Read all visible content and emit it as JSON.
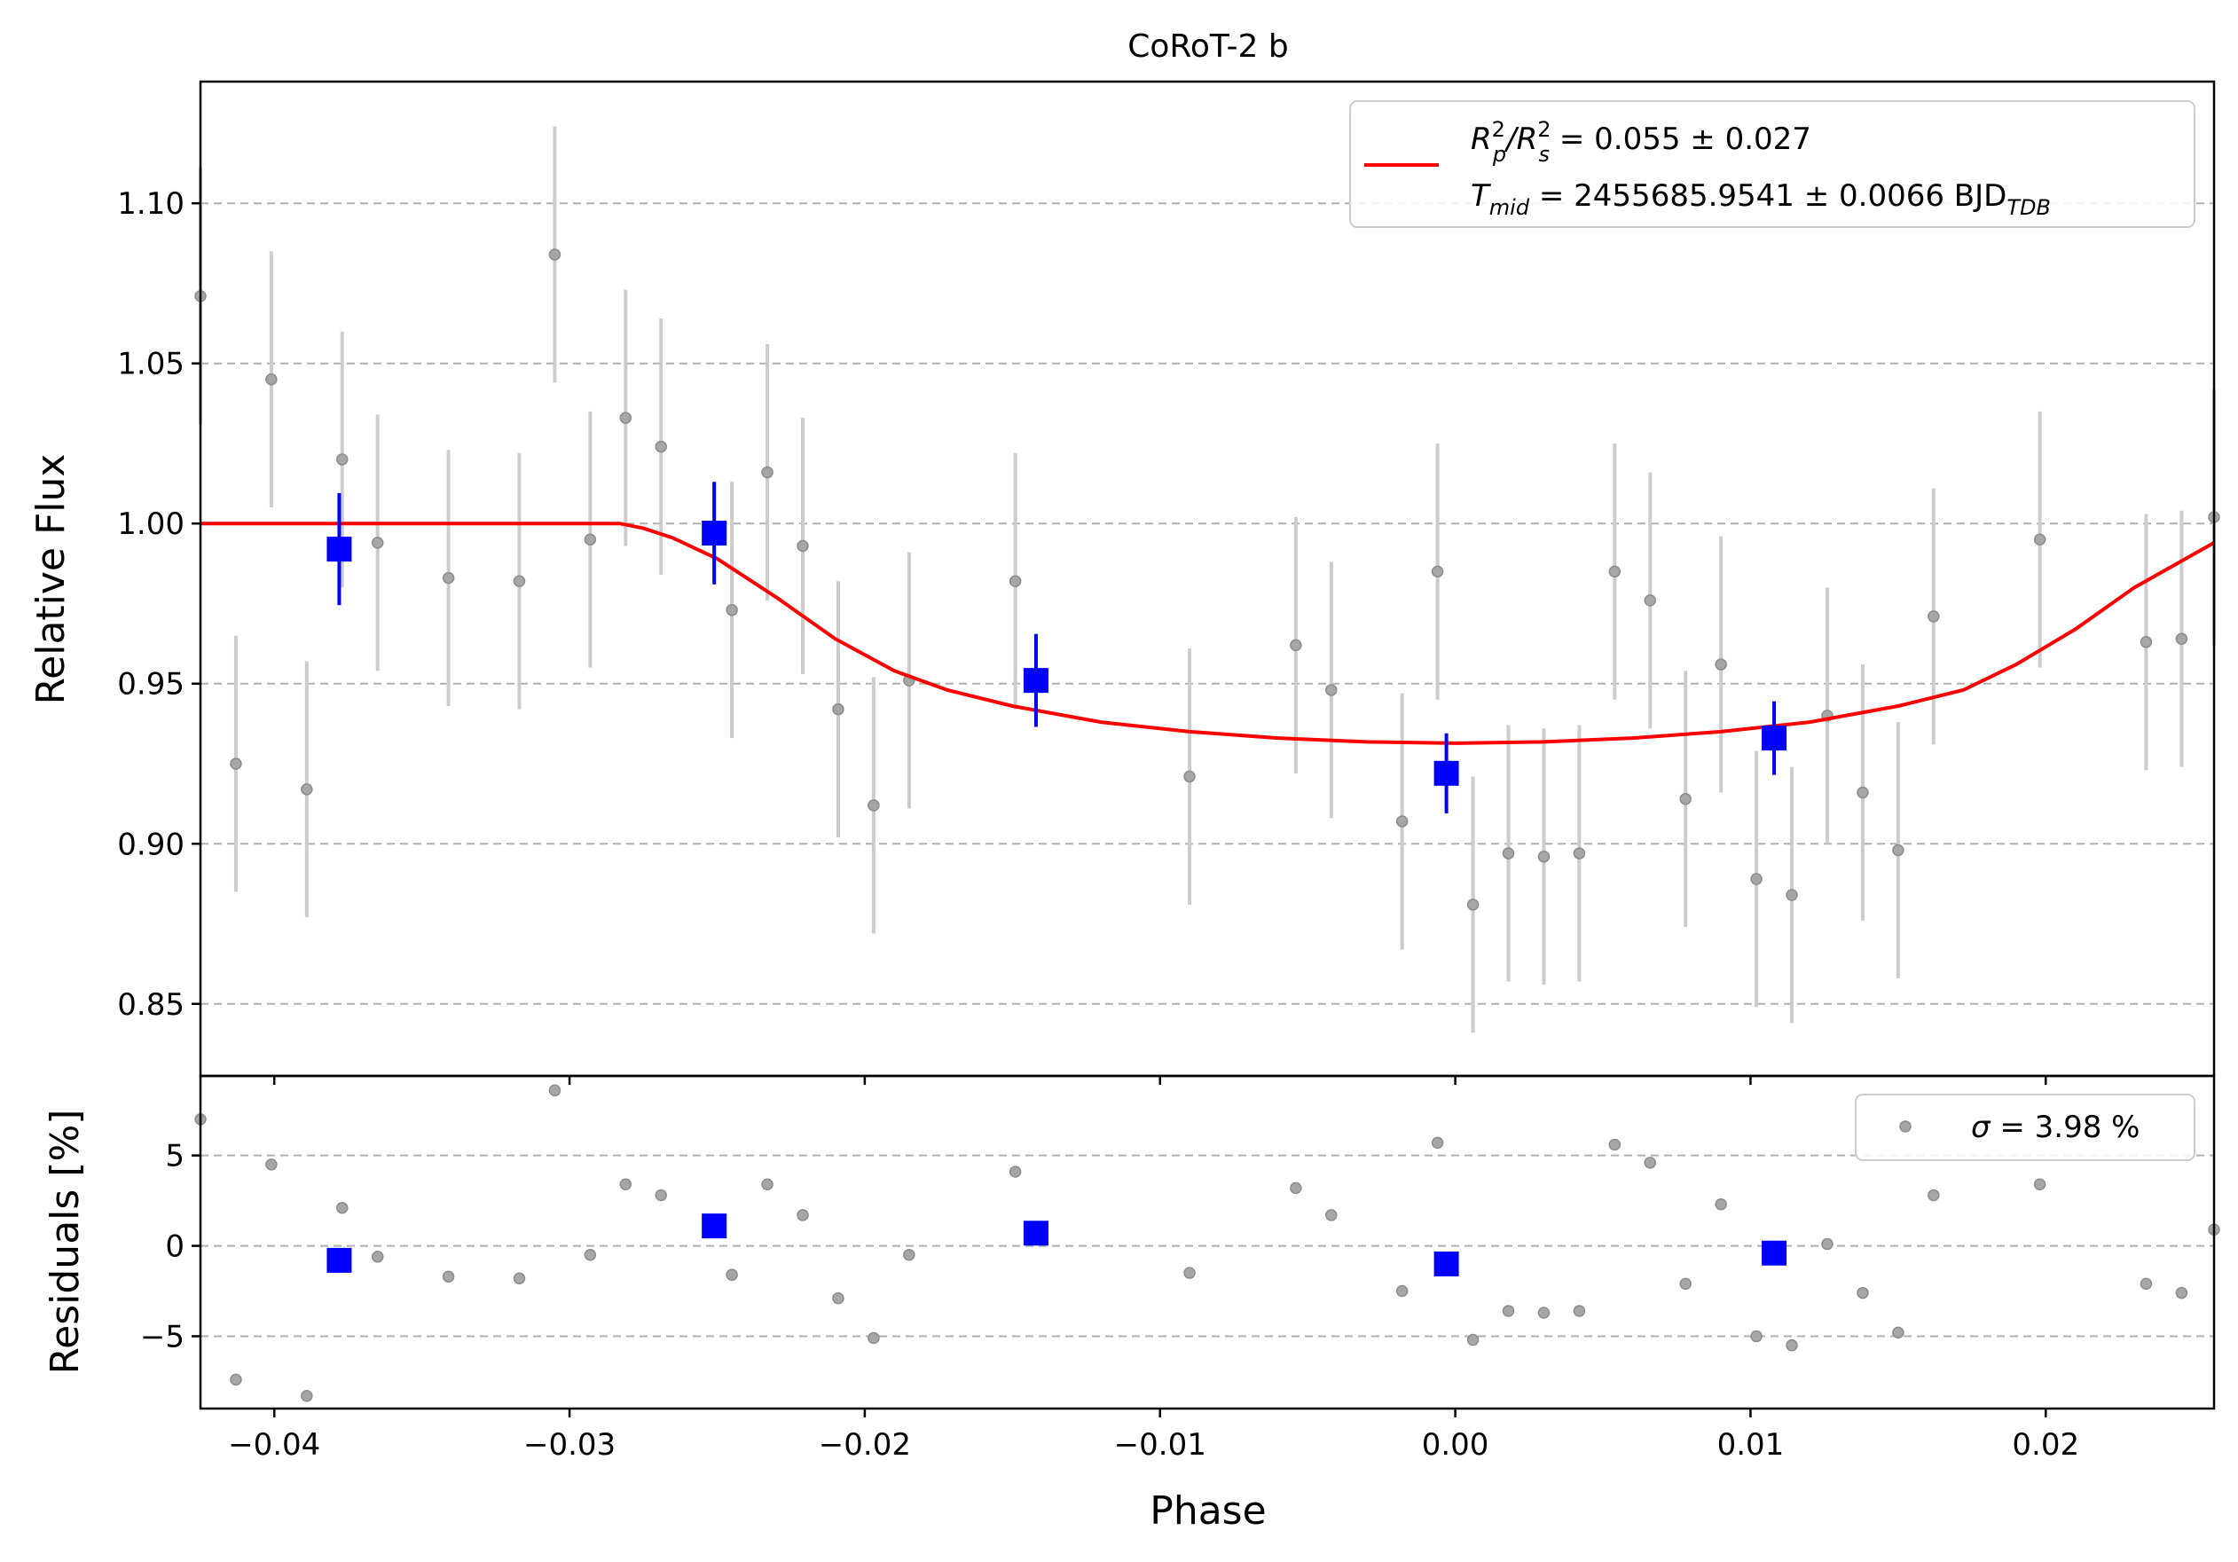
{
  "chart_data": [
    {
      "type": "scatter",
      "panel": "transit",
      "title": "CoRoT-2 b",
      "xlabel": "",
      "ylabel": "Relative Flux",
      "xlim": [
        -0.0425,
        0.0257
      ],
      "ylim": [
        0.8275,
        1.138
      ],
      "grid": "y-dashed",
      "legend_position": "top-right",
      "legend": {
        "line1": {
          "pre": "R",
          "sup1": "2",
          "sub1": "p",
          "mid": "/R",
          "sup2": "2",
          "sub2": "s",
          "post": " = 0.055 ± 0.027"
        },
        "line2": {
          "pre": "T",
          "sub1": "mid",
          "post": " = 2455685.9541 ± 0.0066 BJD",
          "sub2": "TDB"
        }
      },
      "yticks": [
        "0.85",
        "0.90",
        "0.95",
        "1.00",
        "1.05",
        "1.10"
      ],
      "ytick_values": [
        0.85,
        0.9,
        0.95,
        1.0,
        1.05,
        1.1
      ],
      "colors": {
        "data": "#a6a6a6",
        "errorbar": "#cccccc",
        "binned": "#0000ff",
        "model": "#ff0000",
        "grid": "#b0b0b0"
      },
      "data_points": [
        {
          "x": -0.0425,
          "y": 1.071,
          "err": 0.04
        },
        {
          "x": -0.0413,
          "y": 0.925,
          "err": 0.04
        },
        {
          "x": -0.0401,
          "y": 1.045,
          "err": 0.04
        },
        {
          "x": -0.0389,
          "y": 0.917,
          "err": 0.04
        },
        {
          "x": -0.0377,
          "y": 1.02,
          "err": 0.04
        },
        {
          "x": -0.0365,
          "y": 0.994,
          "err": 0.04
        },
        {
          "x": -0.0341,
          "y": 0.983,
          "err": 0.04
        },
        {
          "x": -0.0317,
          "y": 0.982,
          "err": 0.04
        },
        {
          "x": -0.0305,
          "y": 1.084,
          "err": 0.04
        },
        {
          "x": -0.0293,
          "y": 0.995,
          "err": 0.04
        },
        {
          "x": -0.0281,
          "y": 1.033,
          "err": 0.04
        },
        {
          "x": -0.0269,
          "y": 1.024,
          "err": 0.04
        },
        {
          "x": -0.0245,
          "y": 0.973,
          "err": 0.04
        },
        {
          "x": -0.0233,
          "y": 1.016,
          "err": 0.04
        },
        {
          "x": -0.0221,
          "y": 0.993,
          "err": 0.04
        },
        {
          "x": -0.0209,
          "y": 0.942,
          "err": 0.04
        },
        {
          "x": -0.0197,
          "y": 0.912,
          "err": 0.04
        },
        {
          "x": -0.0185,
          "y": 0.951,
          "err": 0.04
        },
        {
          "x": -0.0149,
          "y": 0.982,
          "err": 0.04
        },
        {
          "x": -0.009,
          "y": 0.921,
          "err": 0.04
        },
        {
          "x": -0.0054,
          "y": 0.962,
          "err": 0.04
        },
        {
          "x": -0.0042,
          "y": 0.948,
          "err": 0.04
        },
        {
          "x": -0.0018,
          "y": 0.907,
          "err": 0.04
        },
        {
          "x": -0.0006,
          "y": 0.985,
          "err": 0.04
        },
        {
          "x": 0.0006,
          "y": 0.881,
          "err": 0.04
        },
        {
          "x": 0.0018,
          "y": 0.897,
          "err": 0.04
        },
        {
          "x": 0.003,
          "y": 0.896,
          "err": 0.04
        },
        {
          "x": 0.0042,
          "y": 0.897,
          "err": 0.04
        },
        {
          "x": 0.0054,
          "y": 0.985,
          "err": 0.04
        },
        {
          "x": 0.0066,
          "y": 0.976,
          "err": 0.04
        },
        {
          "x": 0.0078,
          "y": 0.914,
          "err": 0.04
        },
        {
          "x": 0.009,
          "y": 0.956,
          "err": 0.04
        },
        {
          "x": 0.0102,
          "y": 0.889,
          "err": 0.04
        },
        {
          "x": 0.0114,
          "y": 0.884,
          "err": 0.04
        },
        {
          "x": 0.0126,
          "y": 0.94,
          "err": 0.04
        },
        {
          "x": 0.0138,
          "y": 0.916,
          "err": 0.04
        },
        {
          "x": 0.015,
          "y": 0.898,
          "err": 0.04
        },
        {
          "x": 0.0162,
          "y": 0.971,
          "err": 0.04
        },
        {
          "x": 0.0198,
          "y": 0.995,
          "err": 0.04
        },
        {
          "x": 0.0234,
          "y": 0.963,
          "err": 0.04
        },
        {
          "x": 0.0246,
          "y": 0.964,
          "err": 0.04
        },
        {
          "x": 0.0257,
          "y": 1.002,
          "err": 0.04
        }
      ],
      "binned_points": [
        {
          "x": -0.0378,
          "y": 0.992,
          "err": 0.0175
        },
        {
          "x": -0.0251,
          "y": 0.997,
          "err": 0.016
        },
        {
          "x": -0.0142,
          "y": 0.951,
          "err": 0.0145
        },
        {
          "x": -0.0003,
          "y": 0.922,
          "err": 0.0125
        },
        {
          "x": 0.0108,
          "y": 0.933,
          "err": 0.0115
        }
      ],
      "model": {
        "x": [
          -0.0425,
          -0.0283,
          -0.0275,
          -0.0265,
          -0.025,
          -0.023,
          -0.021,
          -0.019,
          -0.0172,
          -0.015,
          -0.012,
          -0.009,
          -0.006,
          -0.003,
          0.0,
          0.003,
          0.006,
          0.009,
          0.012,
          0.015,
          0.0172,
          0.019,
          0.021,
          0.023,
          0.0257
        ],
        "y": [
          1.0,
          1.0,
          0.9985,
          0.9955,
          0.989,
          0.977,
          0.964,
          0.954,
          0.948,
          0.943,
          0.938,
          0.935,
          0.933,
          0.9318,
          0.9314,
          0.9318,
          0.933,
          0.935,
          0.938,
          0.943,
          0.948,
          0.956,
          0.967,
          0.98,
          0.994
        ]
      }
    },
    {
      "type": "scatter",
      "panel": "residuals",
      "xlabel": "Phase",
      "ylabel": "Residuals [%]",
      "xlim": [
        -0.0425,
        0.0257
      ],
      "ylim": [
        -9.0,
        9.4
      ],
      "grid": "y-dashed",
      "legend_position": "top-right",
      "legend": {
        "symbol": "σ",
        "text": " = 3.98 %"
      },
      "xticks": [
        "−0.04",
        "−0.03",
        "−0.02",
        "−0.01",
        "0.00",
        "0.01",
        "0.02"
      ],
      "xtick_values": [
        -0.04,
        -0.03,
        -0.02,
        -0.01,
        0.0,
        0.01,
        0.02
      ],
      "yticks": [
        "−5",
        "0",
        "5"
      ],
      "ytick_values": [
        -5,
        0,
        5
      ],
      "data_points": [
        {
          "x": -0.0425,
          "y": 7.0
        },
        {
          "x": -0.0413,
          "y": -7.4
        },
        {
          "x": -0.0401,
          "y": 4.5
        },
        {
          "x": -0.0389,
          "y": -8.3
        },
        {
          "x": -0.0377,
          "y": 2.1
        },
        {
          "x": -0.0365,
          "y": -0.6
        },
        {
          "x": -0.0341,
          "y": -1.7
        },
        {
          "x": -0.0317,
          "y": -1.8
        },
        {
          "x": -0.0305,
          "y": 8.6
        },
        {
          "x": -0.0293,
          "y": -0.5
        },
        {
          "x": -0.0281,
          "y": 3.4
        },
        {
          "x": -0.0269,
          "y": 2.8
        },
        {
          "x": -0.0245,
          "y": -1.6
        },
        {
          "x": -0.0233,
          "y": 3.4
        },
        {
          "x": -0.0221,
          "y": 1.7
        },
        {
          "x": -0.0209,
          "y": -2.9
        },
        {
          "x": -0.0197,
          "y": -5.1
        },
        {
          "x": -0.0185,
          "y": -0.5
        },
        {
          "x": -0.0149,
          "y": 4.1
        },
        {
          "x": -0.009,
          "y": -1.5
        },
        {
          "x": -0.0054,
          "y": 3.2
        },
        {
          "x": -0.0042,
          "y": 1.7
        },
        {
          "x": -0.0018,
          "y": -2.5
        },
        {
          "x": -0.0006,
          "y": 5.7
        },
        {
          "x": 0.0006,
          "y": -5.2
        },
        {
          "x": 0.0018,
          "y": -3.6
        },
        {
          "x": 0.003,
          "y": -3.7
        },
        {
          "x": 0.0042,
          "y": -3.6
        },
        {
          "x": 0.0054,
          "y": 5.6
        },
        {
          "x": 0.0066,
          "y": 4.6
        },
        {
          "x": 0.0078,
          "y": -2.1
        },
        {
          "x": 0.009,
          "y": 2.3
        },
        {
          "x": 0.0102,
          "y": -5.0
        },
        {
          "x": 0.0114,
          "y": -5.5
        },
        {
          "x": 0.0126,
          "y": 0.1
        },
        {
          "x": 0.0138,
          "y": -2.6
        },
        {
          "x": 0.015,
          "y": -4.8
        },
        {
          "x": 0.0162,
          "y": 2.8
        },
        {
          "x": 0.0198,
          "y": 3.4
        },
        {
          "x": 0.0234,
          "y": -2.1
        },
        {
          "x": 0.0246,
          "y": -2.6
        },
        {
          "x": 0.0257,
          "y": 0.9
        }
      ],
      "binned_points": [
        {
          "x": -0.0378,
          "y": -0.8
        },
        {
          "x": -0.0251,
          "y": 1.1
        },
        {
          "x": -0.0142,
          "y": 0.7
        },
        {
          "x": -0.0003,
          "y": -1.0
        },
        {
          "x": 0.0108,
          "y": -0.4
        }
      ]
    }
  ]
}
